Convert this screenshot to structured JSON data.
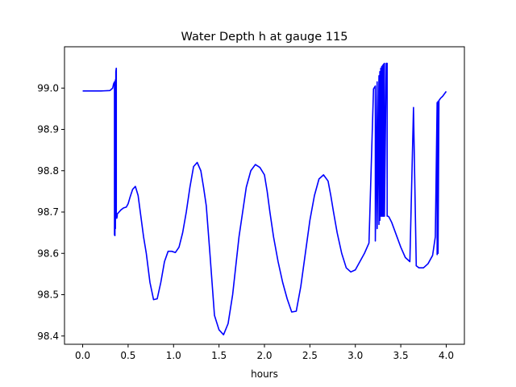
{
  "chart_data": {
    "type": "line",
    "title": "Water Depth h at gauge 115",
    "xlabel": "hours",
    "ylabel": "",
    "xlim": [
      -0.2,
      4.2
    ],
    "ylim": [
      98.38,
      99.1
    ],
    "xticks": [
      0.0,
      0.5,
      1.0,
      1.5,
      2.0,
      2.5,
      3.0,
      3.5,
      4.0
    ],
    "xtick_labels": [
      "0.0",
      "0.5",
      "1.0",
      "1.5",
      "2.0",
      "2.5",
      "3.0",
      "3.5",
      "4.0"
    ],
    "yticks": [
      98.4,
      98.5,
      98.6,
      98.7,
      98.8,
      98.9,
      99.0
    ],
    "ytick_labels": [
      "98.4",
      "98.5",
      "98.6",
      "98.7",
      "98.8",
      "98.9",
      "99.0"
    ],
    "grid": false,
    "series": [
      {
        "color": "#0000ff",
        "x": [
          0.0,
          0.1,
          0.2,
          0.3,
          0.33,
          0.34,
          0.35,
          0.35,
          0.355,
          0.36,
          0.36,
          0.365,
          0.37,
          0.37,
          0.375,
          0.38,
          0.38,
          0.4,
          0.42,
          0.45,
          0.48,
          0.5,
          0.52,
          0.55,
          0.58,
          0.61,
          0.64,
          0.67,
          0.7,
          0.74,
          0.78,
          0.82,
          0.86,
          0.9,
          0.94,
          0.98,
          1.02,
          1.06,
          1.1,
          1.14,
          1.18,
          1.22,
          1.26,
          1.3,
          1.33,
          1.36,
          1.4,
          1.45,
          1.5,
          1.55,
          1.6,
          1.65,
          1.68,
          1.72,
          1.76,
          1.8,
          1.85,
          1.9,
          1.95,
          2.0,
          2.03,
          2.06,
          2.1,
          2.15,
          2.2,
          2.25,
          2.3,
          2.35,
          2.4,
          2.45,
          2.5,
          2.55,
          2.6,
          2.65,
          2.7,
          2.73,
          2.76,
          2.8,
          2.85,
          2.9,
          2.95,
          3.0,
          3.05,
          3.1,
          3.15,
          3.2,
          3.22,
          3.22,
          3.24,
          3.24,
          3.26,
          3.26,
          3.27,
          3.27,
          3.28,
          3.28,
          3.29,
          3.29,
          3.3,
          3.3,
          3.31,
          3.31,
          3.32,
          3.32,
          3.34,
          3.35,
          3.35,
          3.36,
          3.37,
          3.4,
          3.45,
          3.5,
          3.55,
          3.6,
          3.64,
          3.64,
          3.67,
          3.67,
          3.7,
          3.75,
          3.8,
          3.85,
          3.88,
          3.9,
          3.9,
          3.91,
          3.91,
          3.92,
          3.92,
          3.94,
          3.96,
          4.0
        ],
        "y": [
          98.993,
          98.993,
          98.993,
          98.994,
          99.0,
          99.01,
          99.015,
          98.645,
          98.643,
          99.02,
          98.66,
          99.04,
          99.048,
          98.69,
          98.685,
          98.69,
          98.695,
          98.7,
          98.705,
          98.71,
          98.712,
          98.72,
          98.735,
          98.755,
          98.762,
          98.74,
          98.69,
          98.64,
          98.6,
          98.53,
          98.488,
          98.49,
          98.53,
          98.58,
          98.605,
          98.605,
          98.602,
          98.615,
          98.65,
          98.7,
          98.76,
          98.81,
          98.82,
          98.8,
          98.76,
          98.715,
          98.6,
          98.45,
          98.415,
          98.403,
          98.43,
          98.5,
          98.56,
          98.64,
          98.7,
          98.76,
          98.8,
          98.815,
          98.808,
          98.79,
          98.75,
          98.7,
          98.64,
          98.58,
          98.53,
          98.49,
          98.458,
          98.46,
          98.52,
          98.6,
          98.68,
          98.74,
          98.78,
          98.79,
          98.775,
          98.74,
          98.7,
          98.65,
          98.6,
          98.565,
          98.555,
          98.56,
          98.58,
          98.6,
          98.625,
          98.998,
          99.005,
          98.63,
          99.015,
          98.66,
          99.03,
          98.67,
          99.04,
          98.68,
          99.048,
          98.69,
          99.052,
          98.69,
          99.055,
          98.69,
          99.058,
          98.69,
          99.06,
          98.69,
          99.06,
          99.06,
          98.69,
          98.69,
          98.688,
          98.675,
          98.645,
          98.615,
          98.59,
          98.58,
          98.953,
          98.948,
          98.575,
          98.57,
          98.565,
          98.565,
          98.575,
          98.595,
          98.64,
          98.965,
          98.597,
          98.968,
          98.6,
          98.97,
          98.97,
          98.976,
          98.98,
          98.992
        ]
      }
    ]
  }
}
